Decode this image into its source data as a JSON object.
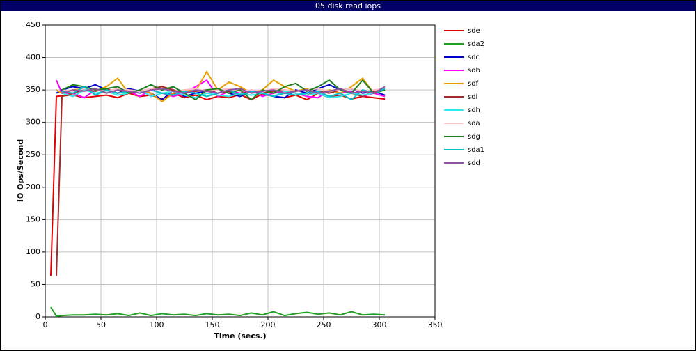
{
  "chart_data": {
    "type": "line",
    "title": "05 disk read iops",
    "xlabel": "Time (secs.)",
    "ylabel": "IO Ops/Second",
    "xlim": [
      0,
      350
    ],
    "xticks": [
      0,
      50,
      100,
      150,
      200,
      250,
      300,
      350
    ],
    "ylim": [
      0,
      450
    ],
    "yticks": [
      0,
      50,
      100,
      150,
      200,
      250,
      300,
      350,
      400,
      450
    ],
    "grid": true,
    "legend": "right",
    "x": [
      5,
      10,
      15,
      25,
      35,
      45,
      55,
      65,
      75,
      85,
      95,
      105,
      115,
      125,
      135,
      145,
      155,
      165,
      175,
      185,
      195,
      205,
      215,
      225,
      235,
      245,
      255,
      265,
      275,
      285,
      295,
      305
    ],
    "series": [
      {
        "name": "sde",
        "color": "#e00000",
        "values": [
          63,
          340,
          341,
          342,
          338,
          340,
          342,
          338,
          345,
          340,
          342,
          336,
          345,
          338,
          342,
          335,
          340,
          338,
          343,
          335,
          344,
          340,
          338,
          342,
          335,
          345,
          338,
          342,
          336,
          340,
          338,
          336
        ]
      },
      {
        "name": "sda2",
        "color": "#20a020",
        "values": [
          15,
          1,
          2,
          3,
          3,
          4,
          3,
          5,
          2,
          6,
          2,
          5,
          3,
          4,
          2,
          5,
          3,
          4,
          2,
          6,
          3,
          8,
          2,
          5,
          7,
          4,
          6,
          3,
          8,
          3,
          4,
          3
        ]
      },
      {
        "name": "sdc",
        "color": "#0000cc",
        "values": [
          null,
          345,
          350,
          355,
          352,
          358,
          350,
          345,
          352,
          348,
          345,
          335,
          350,
          340,
          345,
          348,
          350,
          345,
          340,
          348,
          345,
          340,
          338,
          350,
          345,
          352,
          358,
          350,
          352,
          345,
          348,
          342
        ]
      },
      {
        "name": "sdb",
        "color": "#ff00ff",
        "values": [
          null,
          365,
          345,
          345,
          338,
          350,
          352,
          345,
          348,
          340,
          350,
          345,
          340,
          345,
          355,
          365,
          340,
          348,
          345,
          350,
          340,
          345,
          348,
          345,
          340,
          338,
          350,
          345,
          348,
          340,
          345,
          340
        ]
      },
      {
        "name": "sdf",
        "color": "#e8a000",
        "values": [
          null,
          350,
          345,
          350,
          352,
          348,
          355,
          368,
          345,
          350,
          345,
          332,
          345,
          350,
          348,
          378,
          350,
          362,
          355,
          345,
          350,
          365,
          355,
          348,
          352,
          345,
          350,
          345,
          355,
          368,
          345,
          350
        ]
      },
      {
        "name": "sdi",
        "color": "#a52a2a",
        "values": [
          null,
          63,
          340,
          345,
          350,
          348,
          352,
          345,
          350,
          348,
          352,
          355,
          350,
          345,
          348,
          350,
          345,
          348,
          342,
          350,
          345,
          348,
          350,
          345,
          342,
          348,
          345,
          350,
          345,
          340,
          348,
          350
        ]
      },
      {
        "name": "sdh",
        "color": "#30e8e8",
        "values": [
          null,
          null,
          345,
          340,
          350,
          345,
          348,
          342,
          345,
          350,
          340,
          345,
          348,
          342,
          338,
          345,
          342,
          340,
          345,
          342,
          345,
          340,
          348,
          345,
          342,
          345,
          338,
          340,
          345,
          342,
          345,
          350
        ]
      },
      {
        "name": "sda",
        "color": "#ffc0c8",
        "values": [
          null,
          null,
          350,
          348,
          352,
          350,
          348,
          352,
          350,
          348,
          352,
          350,
          348,
          350,
          352,
          348,
          350,
          352,
          348,
          350,
          348,
          352,
          350,
          348,
          350,
          352,
          348,
          350,
          352,
          348,
          350,
          352
        ]
      },
      {
        "name": "sdg",
        "color": "#208020",
        "values": [
          null,
          null,
          350,
          358,
          355,
          350,
          352,
          355,
          345,
          350,
          358,
          350,
          355,
          345,
          335,
          350,
          352,
          345,
          350,
          335,
          350,
          345,
          355,
          360,
          348,
          355,
          365,
          350,
          345,
          365,
          345,
          350
        ]
      },
      {
        "name": "sda1",
        "color": "#00c0d0",
        "values": [
          null,
          null,
          348,
          345,
          355,
          342,
          350,
          345,
          348,
          345,
          350,
          345,
          342,
          348,
          345,
          340,
          345,
          350,
          342,
          348,
          345,
          340,
          345,
          342,
          345,
          348,
          340,
          345,
          335,
          350,
          345,
          352
        ]
      },
      {
        "name": "sdd",
        "color": "#9050a0",
        "values": [
          null,
          null,
          345,
          350,
          348,
          352,
          345,
          350,
          348,
          345,
          350,
          352,
          348,
          345,
          350,
          348,
          345,
          350,
          352,
          345,
          348,
          350,
          345,
          348,
          350,
          345,
          348,
          352,
          345,
          348,
          345,
          355
        ]
      }
    ]
  }
}
